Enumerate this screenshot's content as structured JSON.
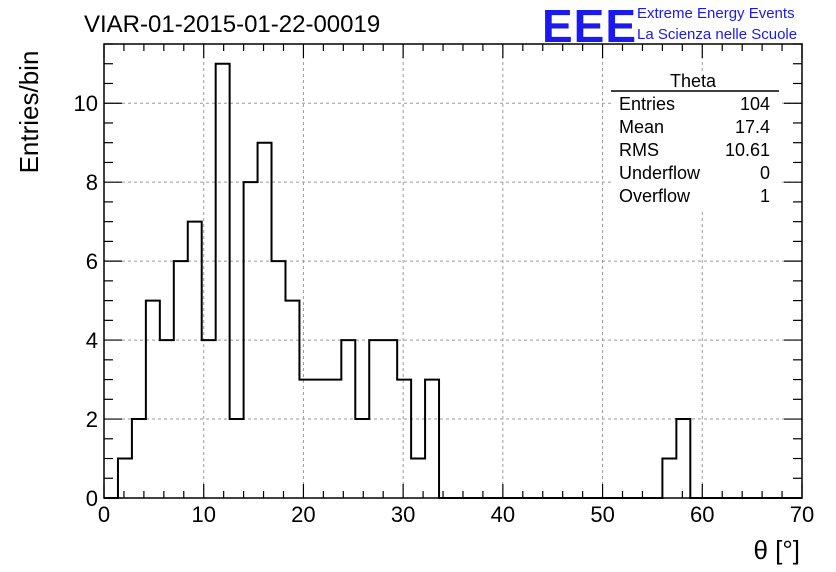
{
  "title": "VIAR-01-2015-01-22-00019",
  "logo": {
    "mark": "EEE",
    "line1": "Extreme Energy Events",
    "line2": "La Scienza nelle Scuole",
    "color": "#1a1aee"
  },
  "stats": {
    "name": "Theta",
    "rows": [
      {
        "label": "Entries",
        "value": "104"
      },
      {
        "label": "Mean",
        "value": "17.4"
      },
      {
        "label": "RMS",
        "value": "10.61"
      },
      {
        "label": "Underflow",
        "value": "0"
      },
      {
        "label": "Overflow",
        "value": "1"
      }
    ]
  },
  "chart_data": {
    "type": "histogram",
    "title": "VIAR-01-2015-01-22-00019",
    "xlabel": "θ [°]",
    "ylabel": "Entries/bin",
    "xlim": [
      0,
      70
    ],
    "ylim": [
      0,
      11.5
    ],
    "bin_width": 1.4,
    "bin_start": 0,
    "xticks": [
      0,
      10,
      20,
      30,
      40,
      50,
      60,
      70
    ],
    "yticks": [
      0,
      2,
      4,
      6,
      8,
      10
    ],
    "grid": true,
    "values": [
      0,
      1,
      2,
      5,
      4,
      6,
      7,
      4,
      11,
      2,
      8,
      9,
      6,
      5,
      3,
      3,
      3,
      4,
      2,
      4,
      4,
      3,
      1,
      3,
      0,
      0,
      0,
      0,
      0,
      0,
      0,
      0,
      0,
      0,
      0,
      0,
      0,
      0,
      0,
      0,
      1,
      2,
      0,
      0,
      0,
      0,
      0,
      0,
      0,
      0
    ],
    "line_color": "#000000"
  }
}
